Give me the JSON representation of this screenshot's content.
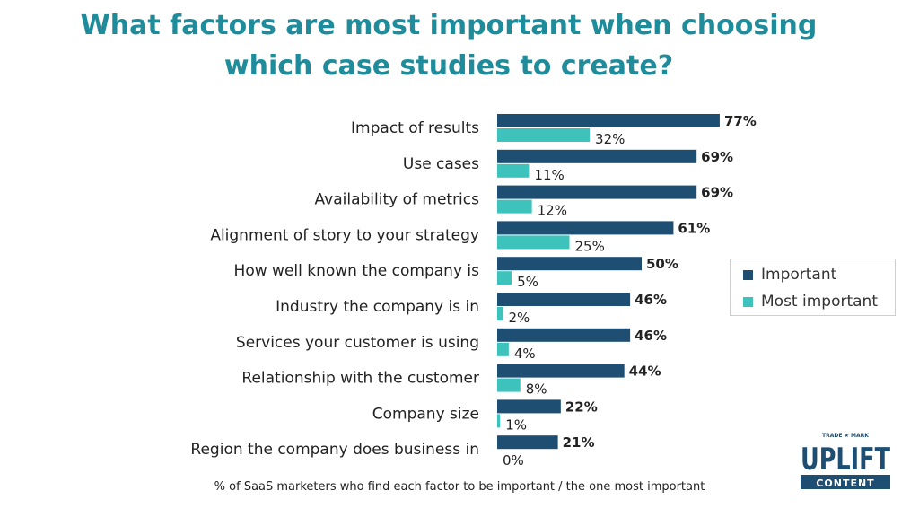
{
  "title": {
    "line1": "What factors are most important when choosing",
    "line2": "which case studies to create?"
  },
  "chart_data": {
    "type": "bar",
    "orientation": "horizontal",
    "categories": [
      "Impact of results",
      "Use cases",
      "Availability of metrics",
      "Alignment of story to your strategy",
      "How well known the company is",
      "Industry the company is in",
      "Services your customer is using",
      "Relationship with the customer",
      "Company size",
      "Region the company does business in"
    ],
    "series": [
      {
        "name": "Important",
        "color": "#1f4e73",
        "values": [
          77,
          69,
          69,
          61,
          50,
          46,
          46,
          44,
          22,
          21
        ]
      },
      {
        "name": "Most important",
        "color": "#3ec2bc",
        "values": [
          32,
          11,
          12,
          25,
          5,
          2,
          4,
          8,
          1,
          0
        ]
      }
    ],
    "value_suffix": "%",
    "xlim": [
      0,
      100
    ],
    "grid": false,
    "legend_position": "right",
    "caption": "% of SaaS marketers who find each factor to be important / the one most important"
  },
  "logo": {
    "top_text": "TRADE ★ MARK",
    "main_text": "UPLIFT",
    "sub_text": "CONTENT",
    "color": "#1f4e73"
  }
}
